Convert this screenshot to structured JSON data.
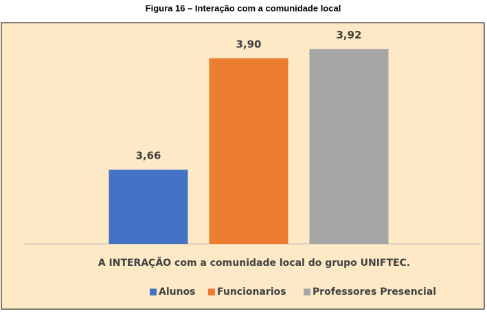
{
  "chart_data": {
    "type": "bar",
    "title": "Figura 16 –  Interação com a comunidade local",
    "categories": [
      "A INTERAÇÃO com a comunidade local do grupo UNIFTEC."
    ],
    "series": [
      {
        "name": "Alunos",
        "color": "#4472c4",
        "values": [
          3.66
        ],
        "value_labels": [
          "3,66"
        ]
      },
      {
        "name": "Funcionarios",
        "color": "#ed7d31",
        "values": [
          3.9
        ],
        "value_labels": [
          "3,90"
        ]
      },
      {
        "name": "Professores Presencial",
        "color": "#a5a5a5",
        "values": [
          3.92
        ],
        "value_labels": [
          "3,92"
        ]
      }
    ],
    "ylim": [
      3.5,
      3.95
    ],
    "legend": "bottom"
  }
}
